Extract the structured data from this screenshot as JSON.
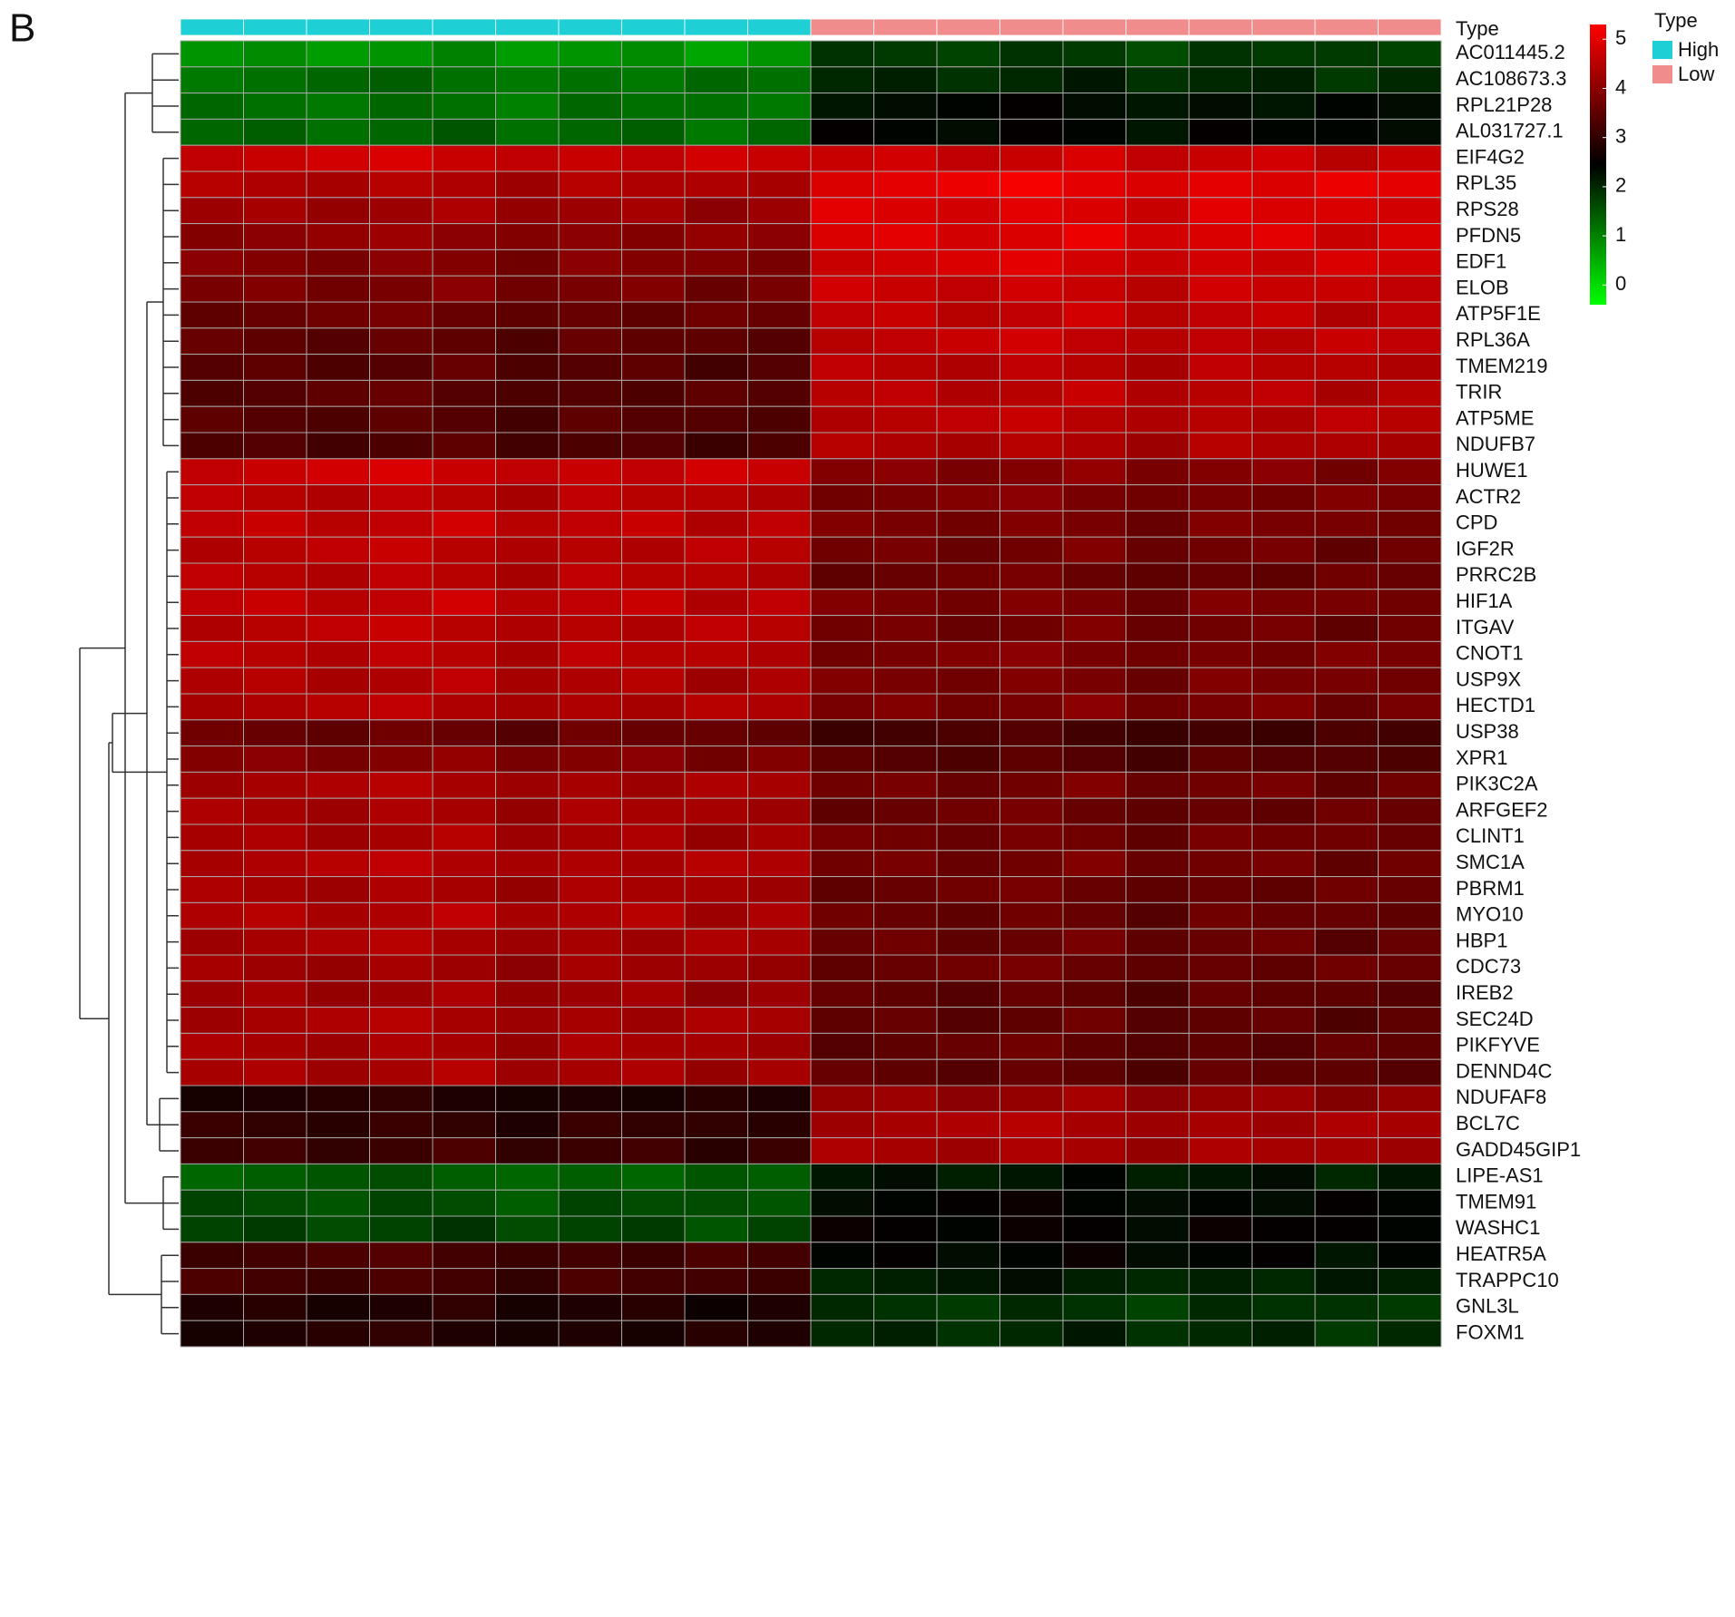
{
  "chart_data": {
    "type": "heatmap",
    "panel_label": "B",
    "rows": [
      "AC011445.2",
      "AC108673.3",
      "RPL21P28",
      "AL031727.1",
      "EIF4G2",
      "RPL35",
      "RPS28",
      "PFDN5",
      "EDF1",
      "ELOB",
      "ATP5F1E",
      "RPL36A",
      "TMEM219",
      "TRIR",
      "ATP5ME",
      "NDUFB7",
      "HUWE1",
      "ACTR2",
      "CPD",
      "IGF2R",
      "PRRC2B",
      "HIF1A",
      "ITGAV",
      "CNOT1",
      "USP9X",
      "HECTD1",
      "USP38",
      "XPR1",
      "PIK3C2A",
      "ARFGEF2",
      "CLINT1",
      "SMC1A",
      "PBRM1",
      "MYO10",
      "HBP1",
      "CDC73",
      "IREB2",
      "SEC24D",
      "PIKFYVE",
      "DENND4C",
      "NDUFAF8",
      "BCL7C",
      "GADD45GIP1",
      "LIPE-AS1",
      "TMEM91",
      "WASHC1",
      "HEATR5A",
      "TRAPPC10",
      "GNL3L",
      "FOXM1"
    ],
    "annotation": {
      "title": "Type",
      "names": [
        "High",
        "Low"
      ],
      "colors": [
        "#1fcfd6",
        "#f08c8c"
      ],
      "column_group": [
        0,
        0,
        0,
        0,
        0,
        0,
        0,
        0,
        0,
        0,
        1,
        1,
        1,
        1,
        1,
        1,
        1,
        1,
        1,
        1
      ]
    },
    "colors": [
      "#00ff00",
      "#000000",
      "#ff0000"
    ],
    "zlim": [
      -0.4,
      5.3
    ],
    "zticks": [
      0,
      1,
      2,
      3,
      4,
      5
    ],
    "values": [
      [
        0.8,
        0.9,
        0.7,
        0.8,
        1.0,
        0.7,
        0.8,
        0.9,
        0.6,
        0.8,
        1.9,
        1.8,
        1.7,
        1.9,
        1.8,
        1.6,
        1.9,
        1.8,
        1.8,
        1.7
      ],
      [
        1.1,
        1.2,
        1.3,
        1.4,
        1.2,
        1.1,
        1.2,
        1.1,
        1.3,
        1.2,
        2.0,
        2.1,
        1.9,
        2.0,
        2.2,
        1.9,
        2.0,
        2.1,
        1.8,
        2.0
      ],
      [
        1.3,
        1.2,
        1.1,
        1.3,
        1.2,
        1.0,
        1.3,
        1.2,
        1.2,
        1.1,
        2.2,
        2.3,
        2.4,
        2.5,
        2.3,
        2.2,
        2.3,
        2.2,
        2.4,
        2.3
      ],
      [
        1.3,
        1.4,
        1.2,
        1.3,
        1.5,
        1.2,
        1.3,
        1.4,
        1.1,
        1.3,
        2.5,
        2.4,
        2.3,
        2.5,
        2.4,
        2.2,
        2.5,
        2.4,
        2.4,
        2.3
      ],
      [
        4.6,
        4.7,
        4.8,
        4.9,
        4.7,
        4.6,
        4.7,
        4.6,
        4.8,
        4.7,
        4.7,
        4.8,
        4.6,
        4.7,
        4.9,
        4.6,
        4.7,
        4.8,
        4.5,
        4.7
      ],
      [
        4.5,
        4.4,
        4.3,
        4.5,
        4.4,
        4.2,
        4.5,
        4.4,
        4.4,
        4.3,
        4.9,
        5.0,
        5.1,
        5.2,
        5.0,
        4.9,
        5.0,
        4.9,
        5.1,
        5.0
      ],
      [
        4.2,
        4.3,
        4.1,
        4.2,
        4.4,
        4.1,
        4.2,
        4.3,
        4.0,
        4.2,
        5.0,
        4.9,
        4.8,
        5.0,
        4.9,
        4.7,
        5.0,
        4.9,
        4.9,
        4.8
      ],
      [
        3.9,
        4.0,
        4.1,
        4.2,
        4.0,
        3.9,
        4.0,
        3.9,
        4.1,
        4.0,
        4.9,
        5.0,
        4.8,
        4.9,
        5.1,
        4.8,
        4.9,
        5.0,
        4.7,
        4.9
      ],
      [
        4.0,
        3.9,
        3.8,
        4.0,
        3.9,
        3.7,
        4.0,
        3.9,
        3.9,
        3.8,
        4.7,
        4.8,
        4.9,
        5.0,
        4.8,
        4.7,
        4.8,
        4.7,
        4.9,
        4.8
      ],
      [
        3.8,
        3.9,
        3.7,
        3.8,
        4.0,
        3.7,
        3.8,
        3.9,
        3.6,
        3.8,
        4.8,
        4.7,
        4.6,
        4.8,
        4.7,
        4.5,
        4.8,
        4.7,
        4.7,
        4.6
      ],
      [
        3.5,
        3.6,
        3.7,
        3.8,
        3.6,
        3.5,
        3.6,
        3.5,
        3.7,
        3.6,
        4.6,
        4.7,
        4.5,
        4.6,
        4.8,
        4.5,
        4.6,
        4.7,
        4.4,
        4.6
      ],
      [
        3.6,
        3.5,
        3.4,
        3.6,
        3.5,
        3.3,
        3.6,
        3.5,
        3.5,
        3.4,
        4.5,
        4.6,
        4.7,
        4.8,
        4.6,
        4.5,
        4.6,
        4.5,
        4.7,
        4.6
      ],
      [
        3.4,
        3.5,
        3.3,
        3.4,
        3.6,
        3.3,
        3.4,
        3.5,
        3.2,
        3.4,
        4.6,
        4.5,
        4.4,
        4.6,
        4.5,
        4.3,
        4.6,
        4.5,
        4.5,
        4.4
      ],
      [
        3.3,
        3.4,
        3.5,
        3.6,
        3.4,
        3.3,
        3.4,
        3.3,
        3.5,
        3.4,
        4.5,
        4.6,
        4.4,
        4.5,
        4.7,
        4.4,
        4.5,
        4.6,
        4.3,
        4.5
      ],
      [
        3.5,
        3.4,
        3.3,
        3.5,
        3.4,
        3.2,
        3.5,
        3.4,
        3.4,
        3.3,
        4.4,
        4.5,
        4.6,
        4.7,
        4.5,
        4.4,
        4.5,
        4.4,
        4.6,
        4.5
      ],
      [
        3.3,
        3.4,
        3.2,
        3.3,
        3.5,
        3.2,
        3.3,
        3.4,
        3.1,
        3.3,
        4.5,
        4.4,
        4.3,
        4.5,
        4.4,
        4.2,
        4.5,
        4.4,
        4.4,
        4.3
      ],
      [
        4.6,
        4.7,
        4.8,
        4.9,
        4.7,
        4.6,
        4.7,
        4.6,
        4.8,
        4.7,
        3.9,
        4.0,
        3.8,
        3.9,
        4.1,
        3.8,
        3.9,
        4.0,
        3.7,
        3.9
      ],
      [
        4.6,
        4.5,
        4.4,
        4.6,
        4.5,
        4.3,
        4.6,
        4.5,
        4.5,
        4.4,
        3.7,
        3.8,
        3.9,
        4.0,
        3.8,
        3.7,
        3.8,
        3.7,
        3.9,
        3.8
      ],
      [
        4.6,
        4.7,
        4.5,
        4.6,
        4.8,
        4.5,
        4.6,
        4.7,
        4.4,
        4.6,
        3.9,
        3.8,
        3.7,
        3.9,
        3.8,
        3.6,
        3.9,
        3.8,
        3.8,
        3.7
      ],
      [
        4.4,
        4.5,
        4.6,
        4.7,
        4.5,
        4.4,
        4.5,
        4.4,
        4.6,
        4.5,
        3.7,
        3.8,
        3.6,
        3.7,
        3.9,
        3.6,
        3.7,
        3.8,
        3.5,
        3.7
      ],
      [
        4.6,
        4.5,
        4.4,
        4.6,
        4.5,
        4.3,
        4.6,
        4.5,
        4.5,
        4.4,
        3.5,
        3.6,
        3.7,
        3.8,
        3.6,
        3.5,
        3.6,
        3.5,
        3.7,
        3.6
      ],
      [
        4.6,
        4.7,
        4.5,
        4.6,
        4.8,
        4.5,
        4.6,
        4.7,
        4.4,
        4.6,
        3.9,
        3.8,
        3.7,
        3.9,
        3.8,
        3.6,
        3.9,
        3.8,
        3.8,
        3.7
      ],
      [
        4.4,
        4.5,
        4.6,
        4.7,
        4.5,
        4.4,
        4.5,
        4.4,
        4.6,
        4.5,
        3.7,
        3.8,
        3.6,
        3.7,
        3.9,
        3.6,
        3.7,
        3.8,
        3.5,
        3.7
      ],
      [
        4.6,
        4.5,
        4.4,
        4.6,
        4.5,
        4.3,
        4.6,
        4.5,
        4.5,
        4.4,
        3.7,
        3.8,
        3.9,
        4.0,
        3.8,
        3.7,
        3.8,
        3.7,
        3.9,
        3.8
      ],
      [
        4.4,
        4.5,
        4.3,
        4.4,
        4.6,
        4.3,
        4.4,
        4.5,
        4.2,
        4.4,
        3.9,
        3.8,
        3.7,
        3.9,
        3.8,
        3.6,
        3.9,
        3.8,
        3.8,
        3.7
      ],
      [
        4.3,
        4.4,
        4.5,
        4.6,
        4.4,
        4.3,
        4.4,
        4.3,
        4.5,
        4.4,
        3.8,
        3.9,
        3.7,
        3.8,
        4.0,
        3.7,
        3.8,
        3.9,
        3.6,
        3.8
      ],
      [
        3.7,
        3.6,
        3.5,
        3.7,
        3.6,
        3.4,
        3.7,
        3.6,
        3.6,
        3.5,
        3.1,
        3.2,
        3.3,
        3.4,
        3.2,
        3.1,
        3.2,
        3.1,
        3.3,
        3.2
      ],
      [
        3.9,
        4.0,
        3.8,
        3.9,
        4.1,
        3.8,
        3.9,
        4.0,
        3.7,
        3.9,
        3.5,
        3.4,
        3.3,
        3.5,
        3.4,
        3.2,
        3.5,
        3.4,
        3.4,
        3.3
      ],
      [
        4.2,
        4.3,
        4.4,
        4.5,
        4.3,
        4.2,
        4.3,
        4.2,
        4.4,
        4.3,
        3.7,
        3.8,
        3.6,
        3.7,
        3.9,
        3.6,
        3.7,
        3.8,
        3.5,
        3.7
      ],
      [
        4.4,
        4.3,
        4.2,
        4.4,
        4.3,
        4.1,
        4.4,
        4.3,
        4.3,
        4.2,
        3.5,
        3.6,
        3.7,
        3.8,
        3.6,
        3.5,
        3.6,
        3.5,
        3.7,
        3.6
      ],
      [
        4.3,
        4.4,
        4.2,
        4.3,
        4.5,
        4.2,
        4.3,
        4.4,
        4.1,
        4.3,
        3.8,
        3.7,
        3.6,
        3.8,
        3.7,
        3.5,
        3.8,
        3.7,
        3.7,
        3.6
      ],
      [
        4.3,
        4.4,
        4.5,
        4.6,
        4.4,
        4.3,
        4.4,
        4.3,
        4.5,
        4.4,
        3.7,
        3.8,
        3.6,
        3.7,
        3.9,
        3.6,
        3.7,
        3.8,
        3.5,
        3.7
      ],
      [
        4.4,
        4.3,
        4.2,
        4.4,
        4.3,
        4.1,
        4.4,
        4.3,
        4.3,
        4.2,
        3.5,
        3.6,
        3.7,
        3.8,
        3.6,
        3.5,
        3.6,
        3.5,
        3.7,
        3.6
      ],
      [
        4.4,
        4.5,
        4.3,
        4.4,
        4.6,
        4.3,
        4.4,
        4.5,
        4.2,
        4.4,
        3.7,
        3.6,
        3.5,
        3.7,
        3.6,
        3.4,
        3.7,
        3.6,
        3.6,
        3.5
      ],
      [
        4.2,
        4.3,
        4.4,
        4.5,
        4.3,
        4.2,
        4.3,
        4.2,
        4.4,
        4.3,
        3.6,
        3.7,
        3.5,
        3.6,
        3.8,
        3.5,
        3.6,
        3.7,
        3.4,
        3.6
      ],
      [
        4.3,
        4.2,
        4.1,
        4.3,
        4.2,
        4.0,
        4.3,
        4.2,
        4.2,
        4.1,
        3.5,
        3.6,
        3.7,
        3.8,
        3.6,
        3.5,
        3.6,
        3.5,
        3.7,
        3.6
      ],
      [
        4.2,
        4.3,
        4.1,
        4.2,
        4.4,
        4.1,
        4.2,
        4.3,
        4.0,
        4.2,
        3.6,
        3.5,
        3.4,
        3.6,
        3.5,
        3.3,
        3.6,
        3.5,
        3.5,
        3.4
      ],
      [
        4.2,
        4.3,
        4.4,
        4.5,
        4.3,
        4.2,
        4.3,
        4.2,
        4.4,
        4.3,
        3.5,
        3.6,
        3.4,
        3.5,
        3.7,
        3.4,
        3.5,
        3.6,
        3.3,
        3.5
      ],
      [
        4.4,
        4.3,
        4.2,
        4.4,
        4.3,
        4.1,
        4.4,
        4.3,
        4.3,
        4.2,
        3.4,
        3.5,
        3.6,
        3.7,
        3.5,
        3.4,
        3.5,
        3.4,
        3.6,
        3.5
      ],
      [
        4.3,
        4.4,
        4.2,
        4.3,
        4.5,
        4.2,
        4.3,
        4.4,
        4.1,
        4.3,
        3.6,
        3.5,
        3.4,
        3.6,
        3.5,
        3.3,
        3.6,
        3.5,
        3.5,
        3.4
      ],
      [
        2.7,
        2.8,
        2.9,
        3.0,
        2.8,
        2.7,
        2.8,
        2.7,
        2.9,
        2.8,
        4.1,
        4.2,
        4.0,
        4.1,
        4.3,
        4.0,
        4.1,
        4.2,
        3.9,
        4.1
      ],
      [
        3.1,
        3.0,
        2.9,
        3.1,
        3.0,
        2.8,
        3.1,
        3.0,
        3.0,
        2.9,
        4.2,
        4.3,
        4.4,
        4.5,
        4.3,
        4.2,
        4.3,
        4.2,
        4.4,
        4.3
      ],
      [
        3.1,
        3.2,
        3.0,
        3.1,
        3.3,
        3.0,
        3.1,
        3.2,
        2.9,
        3.1,
        4.4,
        4.3,
        4.2,
        4.4,
        4.3,
        4.1,
        4.4,
        4.3,
        4.3,
        4.2
      ],
      [
        1.3,
        1.4,
        1.5,
        1.6,
        1.4,
        1.3,
        1.4,
        1.3,
        1.5,
        1.4,
        2.2,
        2.3,
        2.1,
        2.2,
        2.4,
        2.1,
        2.2,
        2.3,
        2.0,
        2.2
      ],
      [
        1.7,
        1.6,
        1.5,
        1.7,
        1.6,
        1.4,
        1.7,
        1.6,
        1.6,
        1.5,
        2.3,
        2.4,
        2.5,
        2.6,
        2.4,
        2.3,
        2.4,
        2.3,
        2.5,
        2.4
      ],
      [
        1.7,
        1.8,
        1.6,
        1.7,
        1.9,
        1.6,
        1.7,
        1.8,
        1.5,
        1.7,
        2.6,
        2.5,
        2.4,
        2.6,
        2.5,
        2.3,
        2.6,
        2.5,
        2.5,
        2.4
      ],
      [
        3.1,
        3.2,
        3.3,
        3.4,
        3.2,
        3.1,
        3.2,
        3.1,
        3.3,
        3.2,
        2.4,
        2.5,
        2.3,
        2.4,
        2.6,
        2.3,
        2.4,
        2.5,
        2.2,
        2.4
      ],
      [
        3.3,
        3.2,
        3.1,
        3.3,
        3.2,
        3.0,
        3.3,
        3.2,
        3.2,
        3.1,
        2.0,
        2.1,
        2.2,
        2.3,
        2.1,
        2.0,
        2.1,
        2.0,
        2.2,
        2.1
      ],
      [
        2.8,
        2.9,
        2.7,
        2.8,
        3.0,
        2.7,
        2.8,
        2.9,
        2.6,
        2.8,
        2.0,
        1.9,
        1.8,
        2.0,
        1.9,
        1.7,
        2.0,
        1.9,
        1.9,
        1.8
      ],
      [
        2.7,
        2.8,
        2.9,
        3.0,
        2.8,
        2.7,
        2.8,
        2.7,
        2.9,
        2.8,
        2.0,
        2.1,
        1.9,
        2.0,
        2.2,
        1.9,
        2.0,
        2.1,
        1.8,
        2.0
      ]
    ]
  }
}
